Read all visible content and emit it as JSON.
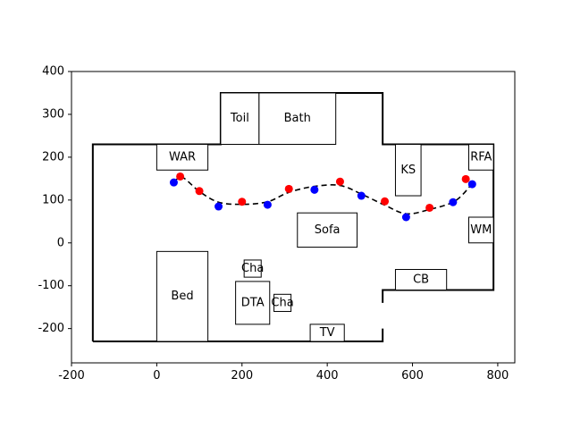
{
  "chart_data": {
    "type": "scatter",
    "title": "",
    "xlabel": "",
    "ylabel": "",
    "xlim": [
      -200,
      840
    ],
    "ylim": [
      -280,
      400
    ],
    "grid": false,
    "x_ticks": [
      "-200",
      "0",
      "200",
      "400",
      "600",
      "800"
    ],
    "y_ticks": [
      "-200",
      "-100",
      "0",
      "100",
      "200",
      "300",
      "400"
    ],
    "walls": [
      [
        [
          -150,
          -230
        ],
        [
          -150,
          230
        ],
        [
          150,
          230
        ],
        [
          150,
          350
        ],
        [
          530,
          350
        ],
        [
          530,
          230
        ],
        [
          790,
          230
        ],
        [
          790,
          -110
        ],
        [
          530,
          -110
        ],
        [
          530,
          -140
        ]
      ],
      [
        [
          530,
          -200
        ],
        [
          530,
          -230
        ],
        [
          -150,
          -230
        ]
      ]
    ],
    "rooms": [
      {
        "label": "WAR",
        "x0": 0,
        "y0": 170,
        "x1": 120,
        "y1": 230
      },
      {
        "label": "Toil",
        "x0": 150,
        "y0": 230,
        "x1": 240,
        "y1": 350
      },
      {
        "label": "Bath",
        "x0": 240,
        "y0": 230,
        "x1": 420,
        "y1": 350
      },
      {
        "label": "KS",
        "x0": 560,
        "y0": 110,
        "x1": 620,
        "y1": 230
      },
      {
        "label": "RFA",
        "x0": 732,
        "y0": 170,
        "x1": 790,
        "y1": 230
      },
      {
        "label": "Sofa",
        "x0": 330,
        "y0": -10,
        "x1": 470,
        "y1": 70
      },
      {
        "label": "WM",
        "x0": 732,
        "y0": 0,
        "x1": 790,
        "y1": 60
      },
      {
        "label": "CB",
        "x0": 560,
        "y0": -110,
        "x1": 680,
        "y1": -62
      },
      {
        "label": "Bed",
        "x0": 0,
        "y0": -230,
        "x1": 120,
        "y1": -20
      },
      {
        "label": "Cha",
        "x0": 205,
        "y0": -80,
        "x1": 245,
        "y1": -40
      },
      {
        "label": "DTA",
        "x0": 185,
        "y0": -190,
        "x1": 265,
        "y1": -90
      },
      {
        "label": "Cha",
        "x0": 275,
        "y0": -160,
        "x1": 315,
        "y1": -120
      },
      {
        "label": "TV",
        "x0": 360,
        "y0": -230,
        "x1": 440,
        "y1": -190
      }
    ],
    "path": {
      "style": "dashed",
      "color": "#000000",
      "x": [
        40,
        60,
        100,
        145,
        200,
        260,
        310,
        370,
        430,
        480,
        535,
        585,
        640,
        700,
        740
      ],
      "y": [
        141,
        153,
        120,
        95,
        90,
        96,
        118,
        132,
        134,
        114,
        88,
        68,
        78,
        98,
        138
      ]
    },
    "series": [
      {
        "color": "#0000ff",
        "x": [
          40,
          145,
          260,
          370,
          480,
          585,
          695,
          740
        ],
        "y": [
          141,
          85,
          89,
          124,
          110,
          60,
          95,
          137
        ]
      },
      {
        "color": "#ff0000",
        "x": [
          55,
          100,
          200,
          310,
          430,
          535,
          640,
          725
        ],
        "y": [
          155,
          121,
          96,
          126,
          143,
          97,
          82,
          149
        ]
      }
    ]
  }
}
